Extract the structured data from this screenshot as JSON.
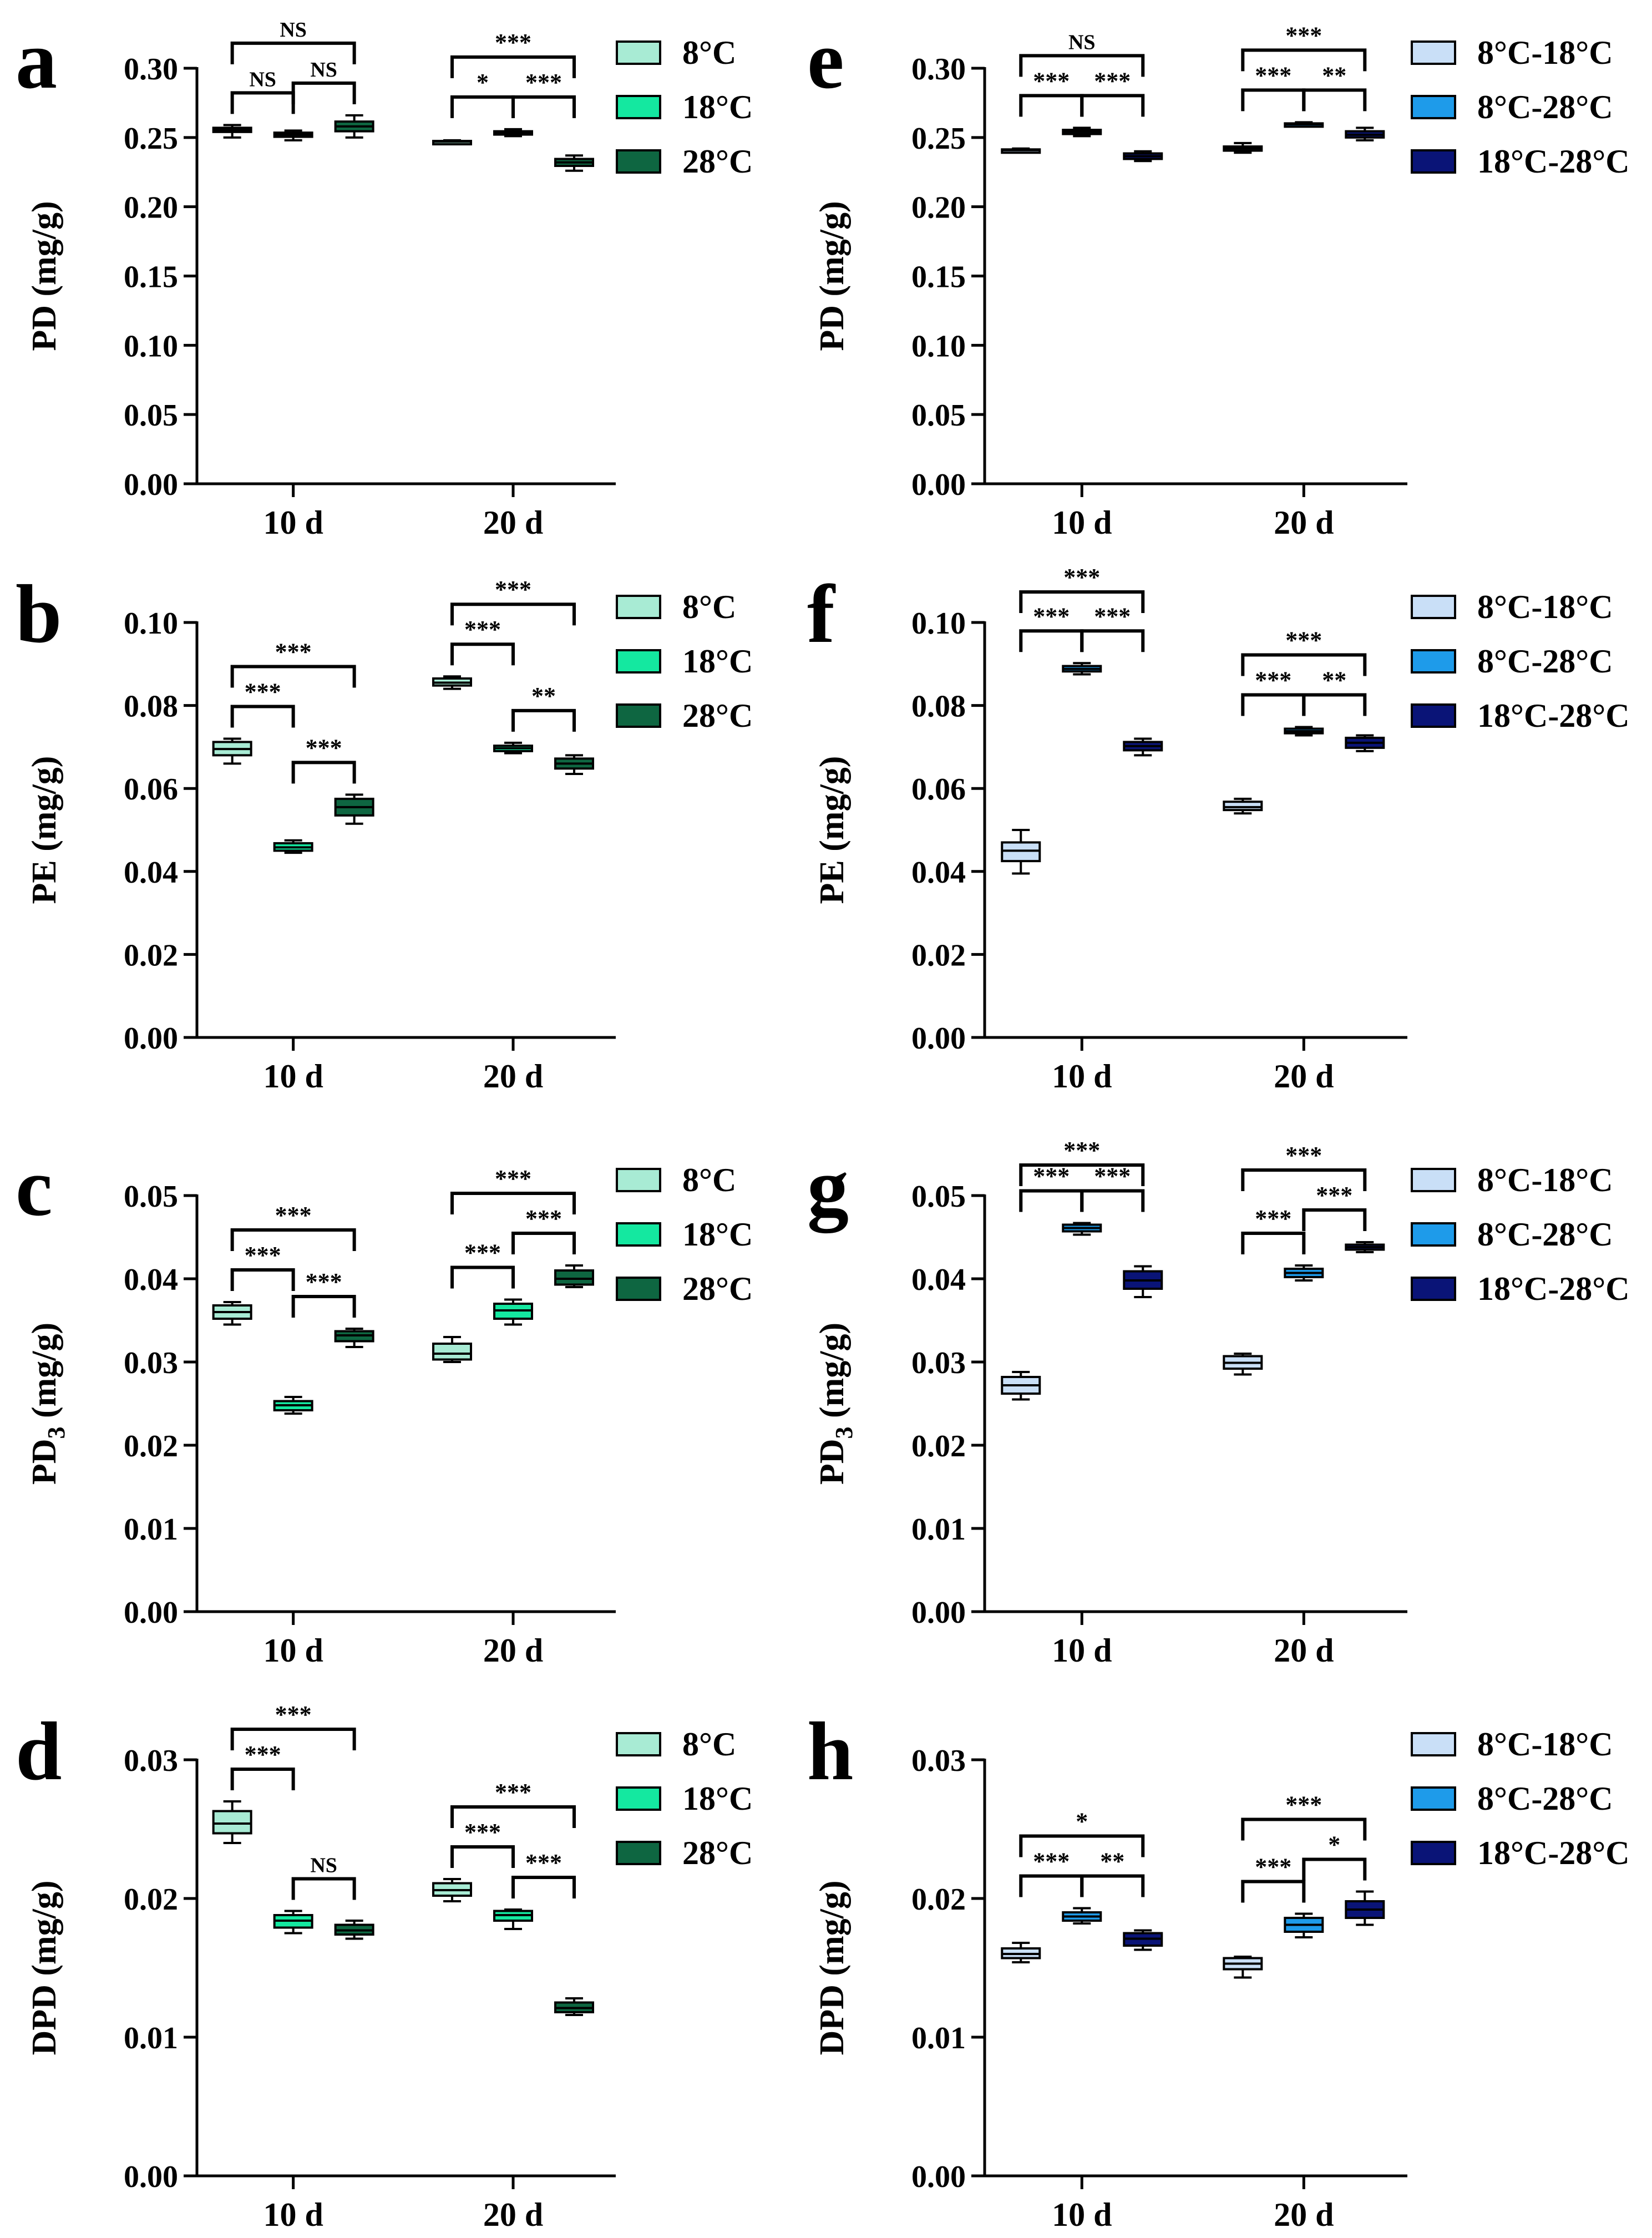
{
  "figure": {
    "panels_left_groups": [
      "8°C",
      "18°C",
      "28°C"
    ],
    "panels_right_groups": [
      "8°C-18°C",
      "8°C-28°C",
      "18°C-28°C"
    ]
  },
  "colors": {
    "left": [
      "#A8EBD4",
      "#14E8A0",
      "#0E6641"
    ],
    "right": [
      "#C9DFF7",
      "#1E9BEA",
      "#0A1477"
    ]
  },
  "chart_data": [
    {
      "id": "a",
      "type": "box",
      "panel_label": "a",
      "ylabel": "PD (mg/g)",
      "ylabel_sub": "",
      "ylim": [
        0,
        0.3
      ],
      "yticks": [
        "0.00",
        "0.05",
        "0.10",
        "0.15",
        "0.20",
        "0.25",
        "0.30"
      ],
      "categories": [
        "10 d",
        "20 d"
      ],
      "legend": [
        "8°C",
        "18°C",
        "28°C"
      ],
      "palette": "left",
      "series": [
        {
          "name": "8°C",
          "box": [
            [
              0.25,
              0.254,
              0.2555,
              0.257,
              0.259
            ],
            [
              0.246,
              0.2465,
              0.247,
              0.2475,
              0.248
            ]
          ]
        },
        {
          "name": "18°C",
          "box": [
            [
              0.248,
              0.2505,
              0.252,
              0.2535,
              0.255
            ],
            [
              0.251,
              0.2525,
              0.2535,
              0.2545,
              0.256
            ]
          ]
        },
        {
          "name": "28°C",
          "box": [
            [
              0.25,
              0.2545,
              0.258,
              0.2615,
              0.266
            ],
            [
              0.226,
              0.2295,
              0.232,
              0.2345,
              0.237
            ]
          ]
        }
      ],
      "brackets": [
        {
          "cat": 0,
          "from": 0,
          "to": 1,
          "level": 1,
          "label": "NS"
        },
        {
          "cat": 0,
          "from": 1,
          "to": 2,
          "level": 1,
          "label": "NS"
        },
        {
          "cat": 0,
          "from": 0,
          "to": 2,
          "level": 2,
          "label": "NS"
        },
        {
          "cat": 1,
          "from": 0,
          "to": 1,
          "level": 1,
          "label": "*"
        },
        {
          "cat": 1,
          "from": 1,
          "to": 2,
          "level": 1,
          "label": "***"
        },
        {
          "cat": 1,
          "from": 0,
          "to": 2,
          "level": 2,
          "label": "***"
        }
      ]
    },
    {
      "id": "b",
      "type": "box",
      "panel_label": "b",
      "ylabel": "PE (mg/g)",
      "ylabel_sub": "",
      "ylim": [
        0,
        0.1
      ],
      "yticks": [
        "0.00",
        "0.02",
        "0.04",
        "0.06",
        "0.08",
        "0.10"
      ],
      "categories": [
        "10 d",
        "20 d"
      ],
      "legend": [
        "8°C",
        "18°C",
        "28°C"
      ],
      "palette": "left",
      "series": [
        {
          "name": "8°C",
          "box": [
            [
              0.066,
              0.068,
              0.0695,
              0.0712,
              0.072
            ],
            [
              0.084,
              0.0848,
              0.0855,
              0.0865,
              0.087
            ]
          ]
        },
        {
          "name": "18°C",
          "box": [
            [
              0.0445,
              0.045,
              0.0458,
              0.0468,
              0.0475
            ],
            [
              0.0685,
              0.069,
              0.0697,
              0.0703,
              0.071
            ]
          ]
        },
        {
          "name": "28°C",
          "box": [
            [
              0.0515,
              0.0535,
              0.0555,
              0.0575,
              0.0585
            ],
            [
              0.0635,
              0.0648,
              0.066,
              0.0672,
              0.068
            ]
          ]
        }
      ],
      "brackets": [
        {
          "cat": 0,
          "from": 0,
          "to": 1,
          "level": 1,
          "label": "***"
        },
        {
          "cat": 0,
          "from": 1,
          "to": 2,
          "level": 1,
          "label": "***"
        },
        {
          "cat": 0,
          "from": 0,
          "to": 2,
          "level": 2,
          "label": "***"
        },
        {
          "cat": 1,
          "from": 0,
          "to": 1,
          "level": 1,
          "label": "***"
        },
        {
          "cat": 1,
          "from": 1,
          "to": 2,
          "level": 1,
          "label": "**"
        },
        {
          "cat": 1,
          "from": 0,
          "to": 2,
          "level": 2,
          "label": "***"
        }
      ]
    },
    {
      "id": "c",
      "type": "box",
      "panel_label": "c",
      "ylabel": "PD",
      "ylabel_sub": "3",
      "ylim": [
        0,
        0.05
      ],
      "yticks": [
        "0.00",
        "0.01",
        "0.02",
        "0.03",
        "0.04",
        "0.05"
      ],
      "categories": [
        "10 d",
        "20 d"
      ],
      "legend": [
        "8°C",
        "18°C",
        "28°C"
      ],
      "palette": "left",
      "series": [
        {
          "name": "8°C",
          "box": [
            [
              0.0345,
              0.0352,
              0.036,
              0.0368,
              0.0372
            ],
            [
              0.03,
              0.0303,
              0.031,
              0.0322,
              0.033
            ]
          ]
        },
        {
          "name": "18°C",
          "box": [
            [
              0.0238,
              0.0242,
              0.0248,
              0.0253,
              0.0258
            ],
            [
              0.0345,
              0.0352,
              0.0362,
              0.037,
              0.0375
            ]
          ]
        },
        {
          "name": "28°C",
          "box": [
            [
              0.0318,
              0.0325,
              0.0332,
              0.0337,
              0.034
            ],
            [
              0.039,
              0.0393,
              0.04,
              0.041,
              0.0416
            ]
          ]
        }
      ],
      "brackets": [
        {
          "cat": 0,
          "from": 0,
          "to": 1,
          "level": 1,
          "label": "***"
        },
        {
          "cat": 0,
          "from": 1,
          "to": 2,
          "level": 1,
          "label": "***"
        },
        {
          "cat": 0,
          "from": 0,
          "to": 2,
          "level": 2,
          "label": "***"
        },
        {
          "cat": 1,
          "from": 0,
          "to": 1,
          "level": 1,
          "label": "***"
        },
        {
          "cat": 1,
          "from": 1,
          "to": 2,
          "level": 1,
          "label": "***"
        },
        {
          "cat": 1,
          "from": 0,
          "to": 2,
          "level": 2,
          "label": "***"
        }
      ]
    },
    {
      "id": "d",
      "type": "box",
      "panel_label": "d",
      "ylabel": "DPD (mg/g)",
      "ylabel_sub": "",
      "ylim": [
        0,
        0.03
      ],
      "yticks": [
        "0.00",
        "0.01",
        "0.02",
        "0.03"
      ],
      "categories": [
        "10 d",
        "20 d"
      ],
      "legend": [
        "8°C",
        "18°C",
        "28°C"
      ],
      "palette": "left",
      "series": [
        {
          "name": "8°C",
          "box": [
            [
              0.024,
              0.0247,
              0.0254,
              0.0263,
              0.027
            ],
            [
              0.0198,
              0.0202,
              0.0206,
              0.0211,
              0.0214
            ]
          ]
        },
        {
          "name": "18°C",
          "box": [
            [
              0.0175,
              0.0179,
              0.0184,
              0.0188,
              0.0191
            ],
            [
              0.0178,
              0.0184,
              0.0188,
              0.0191,
              0.0192
            ]
          ]
        },
        {
          "name": "28°C",
          "box": [
            [
              0.0171,
              0.0174,
              0.0177,
              0.0181,
              0.0184
            ],
            [
              0.0116,
              0.0118,
              0.0121,
              0.0125,
              0.0128
            ]
          ]
        }
      ],
      "brackets": [
        {
          "cat": 0,
          "from": 0,
          "to": 1,
          "level": 1,
          "label": "***"
        },
        {
          "cat": 0,
          "from": 1,
          "to": 2,
          "level": 1,
          "label": "NS"
        },
        {
          "cat": 0,
          "from": 0,
          "to": 2,
          "level": 2,
          "label": "***"
        },
        {
          "cat": 1,
          "from": 0,
          "to": 1,
          "level": 1,
          "label": "***"
        },
        {
          "cat": 1,
          "from": 1,
          "to": 2,
          "level": 1,
          "label": "***"
        },
        {
          "cat": 1,
          "from": 0,
          "to": 2,
          "level": 2,
          "label": "***"
        }
      ]
    },
    {
      "id": "e",
      "type": "box",
      "panel_label": "e",
      "ylabel": "PD (mg/g)",
      "ylabel_sub": "",
      "ylim": [
        0,
        0.3
      ],
      "yticks": [
        "0.00",
        "0.05",
        "0.10",
        "0.15",
        "0.20",
        "0.25",
        "0.30"
      ],
      "categories": [
        "10 d",
        "20 d"
      ],
      "legend": [
        "8°C-18°C",
        "8°C-28°C",
        "18°C-28°C"
      ],
      "palette": "right",
      "series": [
        {
          "name": "8°C-18°C",
          "box": [
            [
              0.2395,
              0.2402,
              0.2408,
              0.2414,
              0.242
            ],
            [
              0.239,
              0.2405,
              0.242,
              0.2435,
              0.246
            ]
          ]
        },
        {
          "name": "8°C-28°C",
          "box": [
            [
              0.251,
              0.2525,
              0.254,
              0.2555,
              0.257
            ],
            [
              0.258,
              0.2588,
              0.2595,
              0.2602,
              0.261
            ]
          ]
        },
        {
          "name": "18°C-28°C",
          "box": [
            [
              0.233,
              0.2345,
              0.2365,
              0.2385,
              0.24
            ],
            [
              0.248,
              0.25,
              0.252,
              0.2545,
              0.257
            ]
          ]
        }
      ],
      "brackets": [
        {
          "cat": 0,
          "from": 0,
          "to": 1,
          "level": 1,
          "label": "***"
        },
        {
          "cat": 0,
          "from": 1,
          "to": 2,
          "level": 1,
          "label": "***"
        },
        {
          "cat": 0,
          "from": 0,
          "to": 2,
          "level": 2,
          "label": "NS"
        },
        {
          "cat": 1,
          "from": 0,
          "to": 1,
          "level": 1,
          "label": "***"
        },
        {
          "cat": 1,
          "from": 1,
          "to": 2,
          "level": 1,
          "label": "**"
        },
        {
          "cat": 1,
          "from": 0,
          "to": 2,
          "level": 2,
          "label": "***"
        }
      ]
    },
    {
      "id": "f",
      "type": "box",
      "panel_label": "f",
      "ylabel": "PE (mg/g)",
      "ylabel_sub": "",
      "ylim": [
        0,
        0.1
      ],
      "yticks": [
        "0.00",
        "0.02",
        "0.04",
        "0.06",
        "0.08",
        "0.10"
      ],
      "categories": [
        "10 d",
        "20 d"
      ],
      "legend": [
        "8°C-18°C",
        "8°C-28°C",
        "18°C-28°C"
      ],
      "palette": "right",
      "series": [
        {
          "name": "8°C-18°C",
          "box": [
            [
              0.0395,
              0.0425,
              0.045,
              0.047,
              0.05
            ],
            [
              0.054,
              0.0548,
              0.0555,
              0.0568,
              0.0575
            ]
          ]
        },
        {
          "name": "8°C-28°C",
          "box": [
            [
              0.0875,
              0.0882,
              0.0888,
              0.0895,
              0.0902
            ],
            [
              0.0728,
              0.0733,
              0.0738,
              0.0744,
              0.0748
            ]
          ]
        },
        {
          "name": "18°C-28°C",
          "box": [
            [
              0.068,
              0.0692,
              0.0702,
              0.0712,
              0.072
            ],
            [
              0.069,
              0.0698,
              0.071,
              0.0722,
              0.0728
            ]
          ]
        }
      ],
      "brackets": [
        {
          "cat": 0,
          "from": 0,
          "to": 1,
          "level": 1,
          "label": "***"
        },
        {
          "cat": 0,
          "from": 1,
          "to": 2,
          "level": 1,
          "label": "***"
        },
        {
          "cat": 0,
          "from": 0,
          "to": 2,
          "level": 2,
          "label": "***"
        },
        {
          "cat": 1,
          "from": 0,
          "to": 1,
          "level": 1,
          "label": "***"
        },
        {
          "cat": 1,
          "from": 1,
          "to": 2,
          "level": 1,
          "label": "**"
        },
        {
          "cat": 1,
          "from": 0,
          "to": 2,
          "level": 2,
          "label": "***"
        }
      ]
    },
    {
      "id": "g",
      "type": "box",
      "panel_label": "g",
      "ylabel": "PD",
      "ylabel_sub": "3",
      "ylim": [
        0,
        0.05
      ],
      "yticks": [
        "0.00",
        "0.01",
        "0.02",
        "0.03",
        "0.04",
        "0.05"
      ],
      "categories": [
        "10 d",
        "20 d"
      ],
      "legend": [
        "8°C-18°C",
        "8°C-28°C",
        "18°C-28°C"
      ],
      "palette": "right",
      "series": [
        {
          "name": "8°C-18°C",
          "box": [
            [
              0.0255,
              0.0262,
              0.0272,
              0.0282,
              0.0288
            ],
            [
              0.0285,
              0.0292,
              0.0299,
              0.0307,
              0.031
            ]
          ]
        },
        {
          "name": "8°C-28°C",
          "box": [
            [
              0.0453,
              0.0457,
              0.0461,
              0.0465,
              0.0467
            ],
            [
              0.0398,
              0.0402,
              0.0407,
              0.0412,
              0.0416
            ]
          ]
        },
        {
          "name": "18°C-28°C",
          "box": [
            [
              0.0378,
              0.0388,
              0.0398,
              0.0409,
              0.0415
            ],
            [
              0.0432,
              0.0435,
              0.0438,
              0.0441,
              0.0444
            ]
          ]
        }
      ],
      "brackets": [
        {
          "cat": 0,
          "from": 0,
          "to": 1,
          "level": 1,
          "label": "***"
        },
        {
          "cat": 0,
          "from": 1,
          "to": 2,
          "level": 1,
          "label": "***"
        },
        {
          "cat": 0,
          "from": 0,
          "to": 2,
          "level": 2,
          "label": "***"
        },
        {
          "cat": 1,
          "from": 0,
          "to": 1,
          "level": 1,
          "label": "***"
        },
        {
          "cat": 1,
          "from": 1,
          "to": 2,
          "level": 1,
          "label": "***"
        },
        {
          "cat": 1,
          "from": 0,
          "to": 2,
          "level": 2,
          "label": "***"
        }
      ]
    },
    {
      "id": "h",
      "type": "box",
      "panel_label": "h",
      "ylabel": "DPD (mg/g)",
      "ylabel_sub": "",
      "ylim": [
        0,
        0.03
      ],
      "yticks": [
        "0.00",
        "0.01",
        "0.02",
        "0.03"
      ],
      "categories": [
        "10 d",
        "20 d"
      ],
      "legend": [
        "8°C-18°C",
        "8°C-28°C",
        "18°C-28°C"
      ],
      "palette": "right",
      "series": [
        {
          "name": "8°C-18°C",
          "box": [
            [
              0.0154,
              0.0157,
              0.016,
              0.0164,
              0.0168
            ],
            [
              0.0143,
              0.0149,
              0.0153,
              0.0157,
              0.0158
            ]
          ]
        },
        {
          "name": "8°C-28°C",
          "box": [
            [
              0.0182,
              0.0184,
              0.0187,
              0.019,
              0.0193
            ],
            [
              0.0172,
              0.0176,
              0.0181,
              0.0186,
              0.0189
            ]
          ]
        },
        {
          "name": "18°C-28°C",
          "box": [
            [
              0.0163,
              0.0166,
              0.0171,
              0.0175,
              0.0177
            ],
            [
              0.0181,
              0.0186,
              0.0192,
              0.0198,
              0.0205
            ]
          ]
        }
      ],
      "brackets": [
        {
          "cat": 0,
          "from": 0,
          "to": 1,
          "level": 1,
          "label": "***"
        },
        {
          "cat": 0,
          "from": 1,
          "to": 2,
          "level": 1,
          "label": "**"
        },
        {
          "cat": 0,
          "from": 0,
          "to": 2,
          "level": 2,
          "label": "*"
        },
        {
          "cat": 1,
          "from": 0,
          "to": 1,
          "level": 1,
          "label": "***"
        },
        {
          "cat": 1,
          "from": 1,
          "to": 2,
          "level": 1,
          "label": "*"
        },
        {
          "cat": 1,
          "from": 0,
          "to": 2,
          "level": 2,
          "label": "***"
        }
      ]
    }
  ]
}
